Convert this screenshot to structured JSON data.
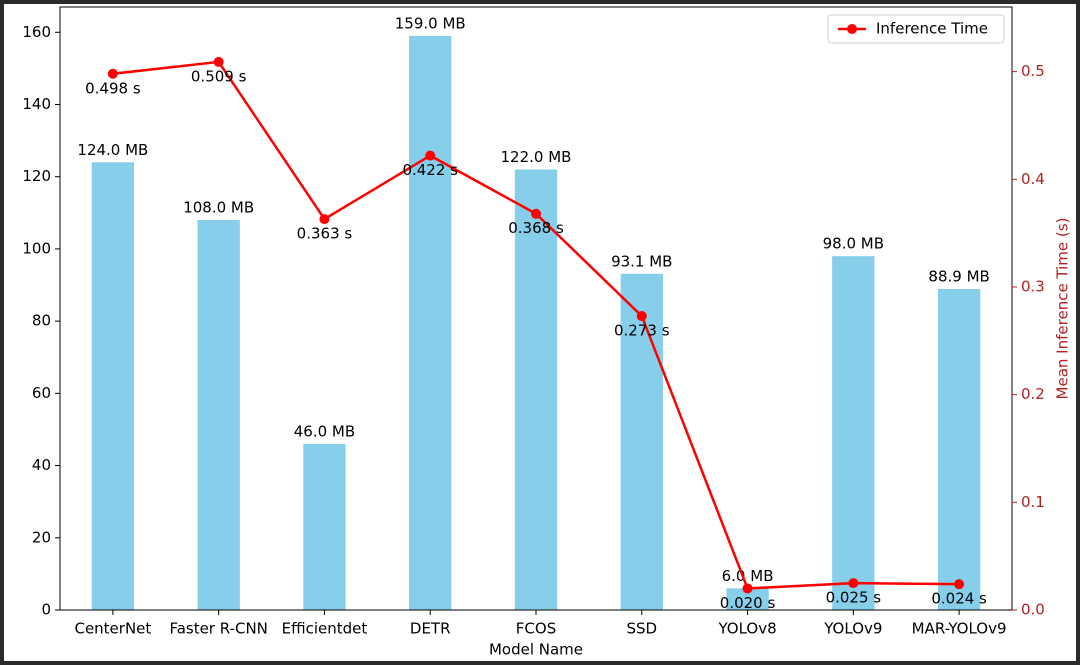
{
  "chart_data": {
    "type": "bar",
    "xlabel": "Model Name",
    "y2label": "Mean Inference Time (s)",
    "categories": [
      "CenterNet",
      "Faster R-CNN",
      "Efficientdet",
      "DETR",
      "FCOS",
      "SSD",
      "YOLOv8",
      "YOLOv9",
      "MAR-YOLOv9"
    ],
    "series": [
      {
        "type": "bar",
        "color": "#87ceeb",
        "values": [
          124.0,
          108.0,
          46.0,
          159.0,
          122.0,
          93.1,
          6.0,
          98.0,
          88.9
        ],
        "value_labels": [
          "124.0 MB",
          "108.0 MB",
          "46.0 MB",
          "159.0 MB",
          "122.0 MB",
          "93.1 MB",
          "6.0 MB",
          "98.0 MB",
          "88.9 MB"
        ]
      },
      {
        "type": "line",
        "name": "Inference Time",
        "axis": "y2",
        "color": "#ff0000",
        "values": [
          0.498,
          0.509,
          0.363,
          0.422,
          0.368,
          0.273,
          0.02,
          0.025,
          0.024
        ],
        "value_labels": [
          "0.498 s",
          "0.509 s",
          "0.363 s",
          "0.422 s",
          "0.368 s",
          "0.273 s",
          "0.020 s",
          "0.025 s",
          "0.024 s"
        ]
      }
    ],
    "ylim": [
      0,
      167
    ],
    "yticks": [
      0,
      20,
      40,
      60,
      80,
      100,
      120,
      140,
      160
    ],
    "y2lim": [
      0,
      0.56
    ],
    "y2ticks": [
      {
        "value": 0,
        "label": "0.0"
      },
      0.1,
      0.2,
      0.3,
      0.4,
      0.5
    ],
    "y2color": "#b22222",
    "legend": "upper right"
  }
}
